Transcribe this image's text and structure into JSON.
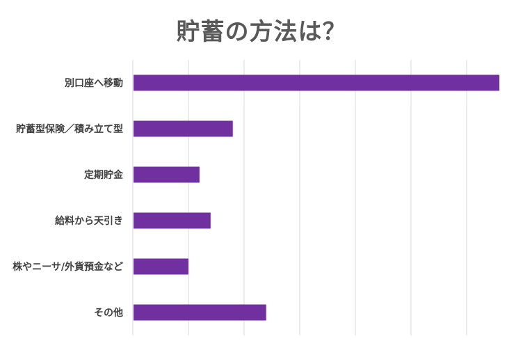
{
  "chart_data": {
    "type": "bar",
    "orientation": "horizontal",
    "title": "貯蓄の方法は？",
    "categories": [
      "別口座へ移動",
      "貯蓄型保険／積み立て型",
      "定期貯金",
      "給料から天引き",
      "株やニーサ/外貨預金など",
      "その他"
    ],
    "values": [
      33,
      9,
      6,
      7,
      5,
      12
    ],
    "xlim": [
      0,
      35
    ],
    "grid": true,
    "legend": "none",
    "bar_color": "#7030a0"
  }
}
